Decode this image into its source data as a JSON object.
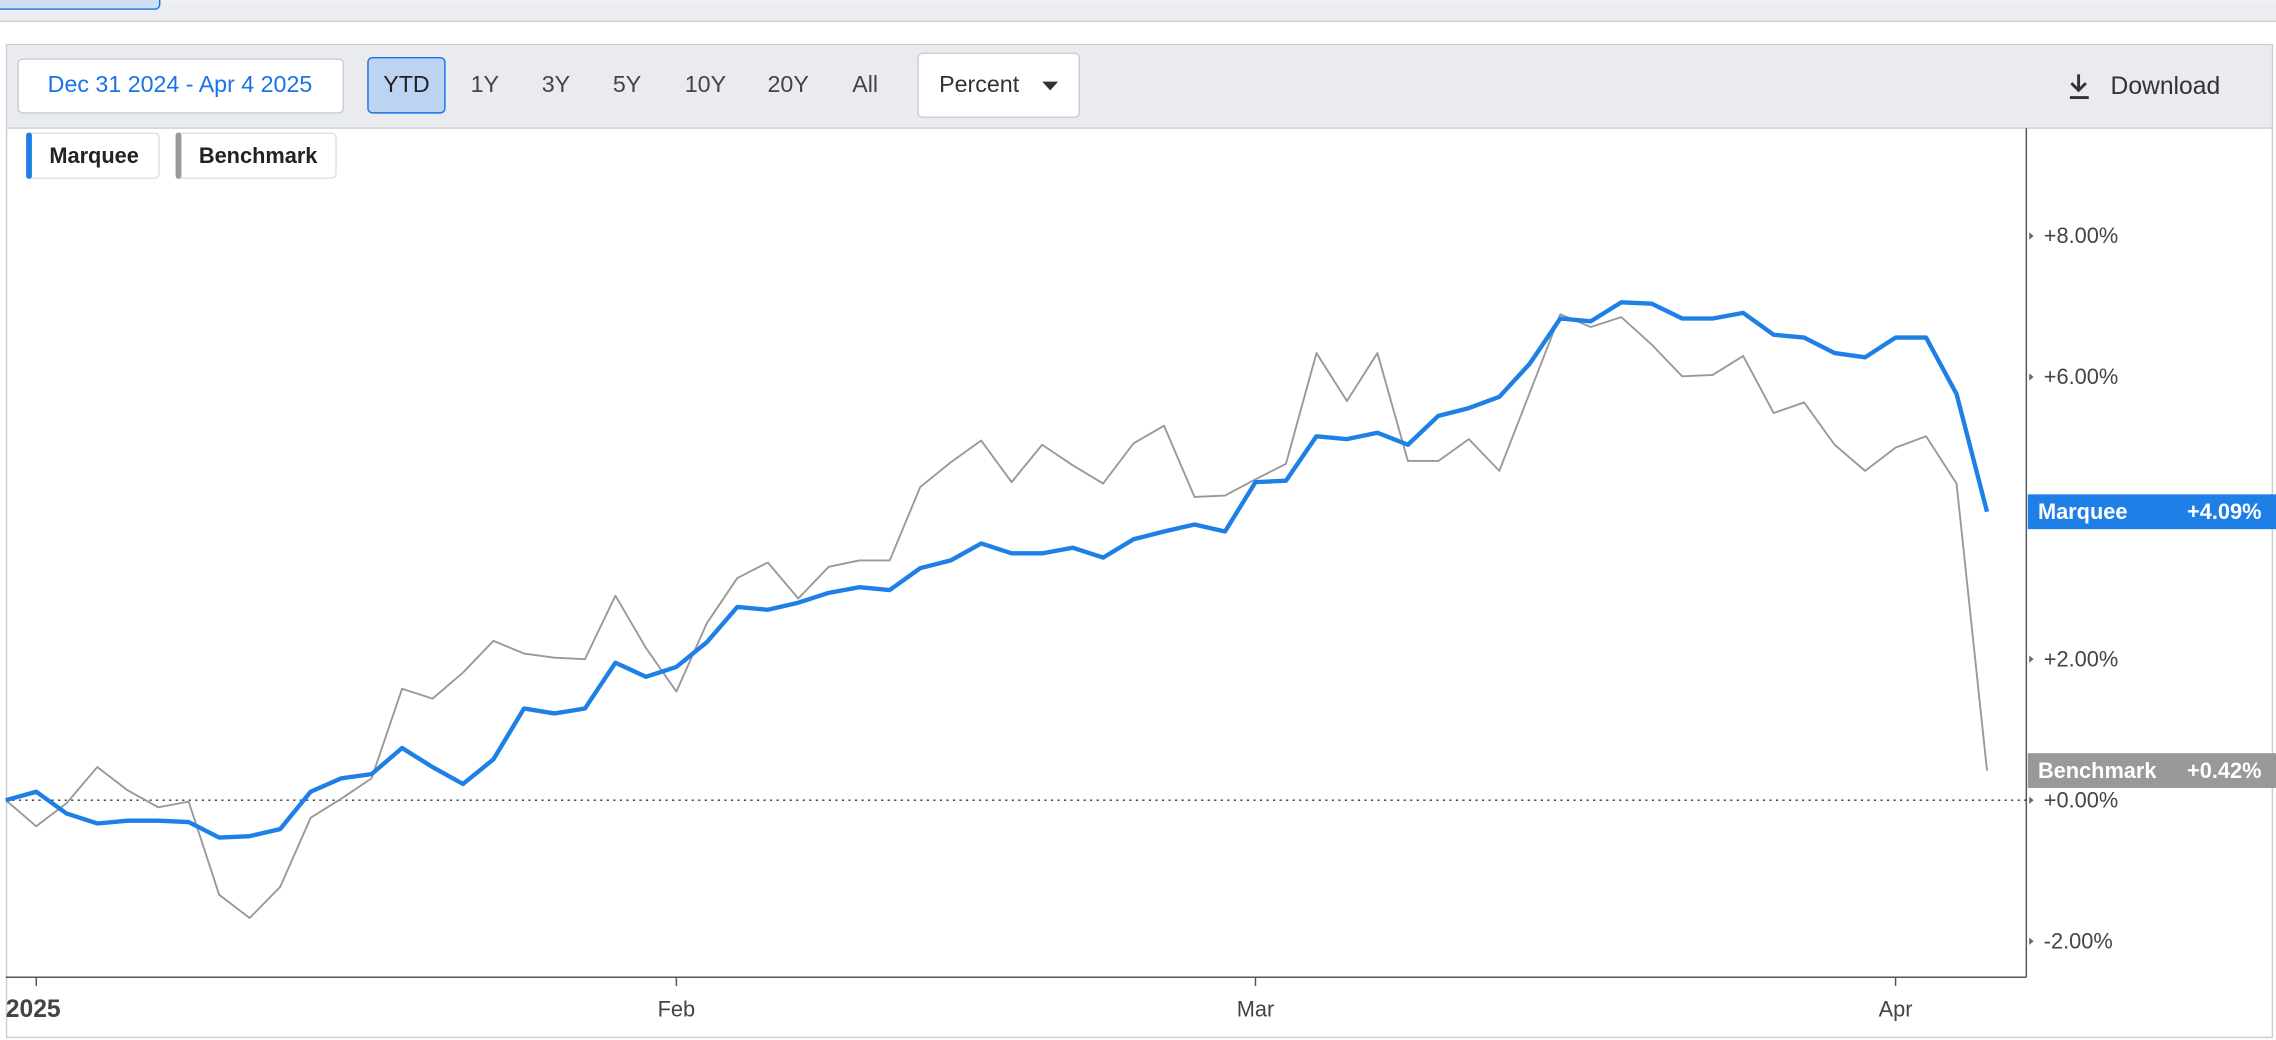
{
  "toolbar": {
    "date_range": "Dec 31 2024 - Apr 4 2025",
    "periods": [
      "YTD",
      "1Y",
      "3Y",
      "5Y",
      "10Y",
      "20Y",
      "All"
    ],
    "active_period": 0,
    "mode": "Percent",
    "download": "Download"
  },
  "chart_data": {
    "type": "line",
    "x": [
      0,
      1,
      2,
      3,
      4,
      5,
      6,
      7,
      8,
      9,
      10,
      11,
      12,
      13,
      14,
      15,
      16,
      17,
      18,
      19,
      20,
      21,
      22,
      23,
      24,
      25,
      26,
      27,
      28,
      29,
      30,
      31,
      32,
      33,
      34,
      35,
      36,
      37,
      38,
      39,
      40,
      41,
      42,
      43,
      44,
      45,
      46,
      47,
      48,
      49,
      50,
      51,
      52,
      53,
      54,
      55,
      56,
      57,
      58,
      59,
      60,
      61,
      62,
      63,
      64,
      65
    ],
    "xlim": [
      0,
      66.29
    ],
    "xticks": [
      {
        "value": 1,
        "label": "2025"
      },
      {
        "value": 22,
        "label": "Feb"
      },
      {
        "value": 41,
        "label": "Mar"
      },
      {
        "value": 62,
        "label": "Apr"
      }
    ],
    "ylim": [
      -2.51,
      9.53
    ],
    "yticks": [
      {
        "value": -2,
        "label": "-2.00%"
      },
      {
        "value": 0,
        "label": "+0.00%"
      },
      {
        "value": 2,
        "label": "+2.00%"
      },
      {
        "value": 6,
        "label": "+6.00%"
      },
      {
        "value": 8,
        "label": "+8.00%"
      }
    ],
    "zero_line": true,
    "series": [
      {
        "name": "Marquee",
        "color": "#1e7fe6",
        "values": [
          0,
          0.12,
          -0.19,
          -0.33,
          -0.29,
          -0.29,
          -0.31,
          -0.53,
          -0.51,
          -0.41,
          0.12,
          0.31,
          0.37,
          0.74,
          0.47,
          0.23,
          0.58,
          1.3,
          1.23,
          1.3,
          1.95,
          1.75,
          1.89,
          2.24,
          2.74,
          2.7,
          2.8,
          2.94,
          3.02,
          2.98,
          3.29,
          3.4,
          3.64,
          3.5,
          3.5,
          3.58,
          3.44,
          3.7,
          3.81,
          3.91,
          3.81,
          4.51,
          4.53,
          5.16,
          5.12,
          5.21,
          5.04,
          5.45,
          5.56,
          5.72,
          6.19,
          6.83,
          6.79,
          7.06,
          7.04,
          6.83,
          6.83,
          6.91,
          6.6,
          6.56,
          6.34,
          6.28,
          6.56,
          6.56,
          5.76,
          4.09
        ],
        "value_labels": [
          null,
          null,
          null,
          null,
          null,
          null,
          null,
          null,
          null,
          null,
          null,
          null,
          null,
          null,
          null,
          null,
          null,
          null,
          null,
          null,
          null,
          null,
          null,
          null,
          null,
          null,
          null,
          null,
          null,
          null,
          null,
          null,
          null,
          null,
          null,
          null,
          null,
          null,
          null,
          null,
          null,
          null,
          null,
          null,
          null,
          null,
          null,
          null,
          null,
          null,
          null,
          null,
          null,
          null,
          null,
          null,
          null,
          null,
          null,
          null,
          null,
          null,
          null,
          null,
          null,
          "+4.09%"
        ]
      },
      {
        "name": "Benchmark",
        "color": "#999999",
        "values": [
          0,
          -0.37,
          -0.04,
          0.47,
          0.14,
          -0.1,
          -0.02,
          -1.34,
          -1.67,
          -1.23,
          -0.25,
          0.02,
          0.31,
          1.58,
          1.44,
          1.81,
          2.26,
          2.08,
          2.02,
          2.0,
          2.9,
          2.16,
          1.54,
          2.51,
          3.15,
          3.37,
          2.86,
          3.31,
          3.4,
          3.4,
          4.44,
          4.79,
          5.1,
          4.51,
          5.04,
          4.75,
          4.49,
          5.06,
          5.31,
          4.3,
          4.32,
          4.55,
          4.77,
          6.34,
          5.66,
          6.34,
          4.81,
          4.81,
          5.12,
          4.67,
          5.78,
          6.89,
          6.71,
          6.85,
          6.46,
          6.01,
          6.03,
          6.3,
          5.49,
          5.64,
          5.04,
          4.67,
          5.0,
          5.16,
          4.49,
          0.42
        ],
        "value_labels": [
          null,
          null,
          null,
          null,
          null,
          null,
          null,
          null,
          null,
          null,
          null,
          null,
          null,
          null,
          null,
          null,
          null,
          null,
          null,
          null,
          null,
          null,
          null,
          null,
          null,
          null,
          null,
          null,
          null,
          null,
          null,
          null,
          null,
          null,
          null,
          null,
          null,
          null,
          null,
          null,
          null,
          null,
          null,
          null,
          null,
          null,
          null,
          null,
          null,
          null,
          null,
          null,
          null,
          null,
          null,
          null,
          null,
          null,
          null,
          null,
          null,
          null,
          null,
          null,
          null,
          "+0.42%"
        ]
      }
    ]
  }
}
